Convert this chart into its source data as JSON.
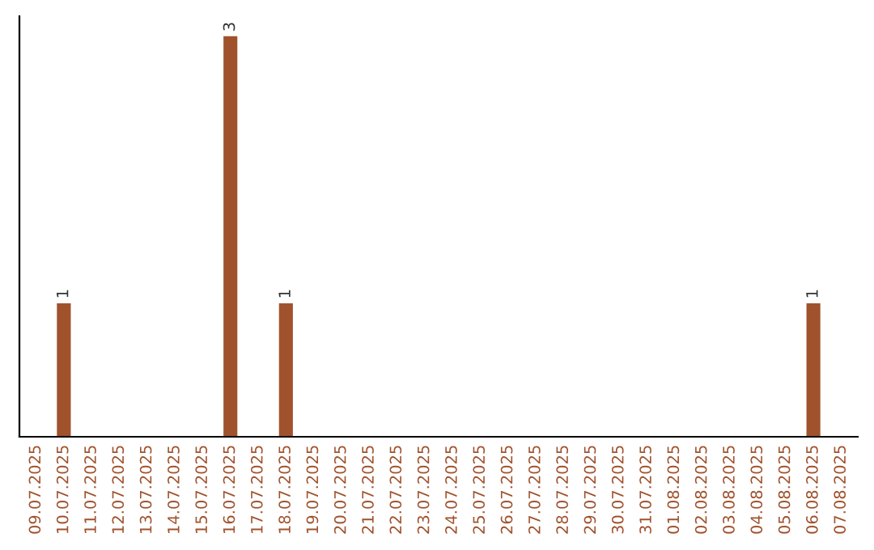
{
  "chart_data": {
    "type": "bar",
    "categories": [
      "09.07.2025",
      "10.07.2025",
      "11.07.2025",
      "12.07.2025",
      "13.07.2025",
      "14.07.2025",
      "15.07.2025",
      "16.07.2025",
      "17.07.2025",
      "18.07.2025",
      "19.07.2025",
      "20.07.2025",
      "21.07.2025",
      "22.07.2025",
      "23.07.2025",
      "24.07.2025",
      "25.07.2025",
      "26.07.2025",
      "27.07.2025",
      "28.07.2025",
      "29.07.2025",
      "30.07.2025",
      "31.07.2025",
      "01.08.2025",
      "02.08.2025",
      "03.08.2025",
      "04.08.2025",
      "05.08.2025",
      "06.08.2025",
      "07.08.2025"
    ],
    "values": [
      0,
      1,
      0,
      0,
      0,
      0,
      0,
      3,
      0,
      1,
      0,
      0,
      0,
      0,
      0,
      0,
      0,
      0,
      0,
      0,
      0,
      0,
      0,
      0,
      0,
      0,
      0,
      0,
      1,
      0
    ],
    "value_labels": [
      null,
      "1",
      null,
      null,
      null,
      null,
      null,
      "3",
      null,
      "1",
      null,
      null,
      null,
      null,
      null,
      null,
      null,
      null,
      null,
      null,
      null,
      null,
      null,
      null,
      null,
      null,
      null,
      null,
      "1",
      null
    ],
    "color": "#a0522d",
    "tick_labels": "x",
    "grid": false,
    "legend": false
  }
}
